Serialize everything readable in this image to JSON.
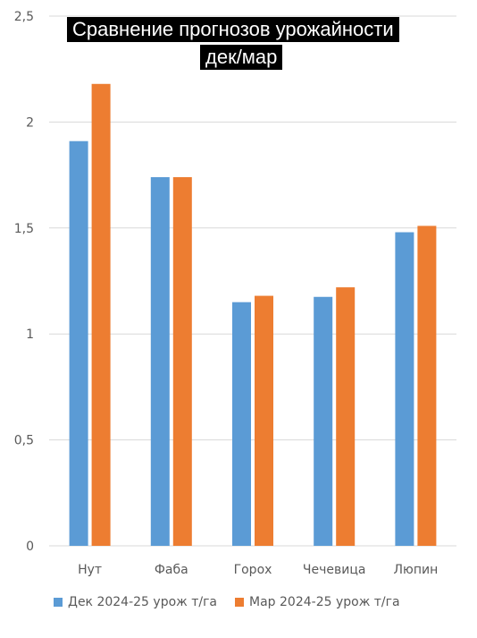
{
  "chart_data": {
    "type": "bar",
    "title": "Сравнение прогнозов урожайности",
    "subtitle": "дек/мар",
    "categories": [
      "Нут",
      "Фаба",
      "Горох",
      "Чечевица",
      "Люпин"
    ],
    "series": [
      {
        "name": "Дек 2024-25 урож т/га",
        "color": "#5B9BD5",
        "values": [
          1.91,
          1.74,
          1.15,
          1.175,
          1.48
        ]
      },
      {
        "name": "Мар 2024-25 урож т/га",
        "color": "#ED7D31",
        "values": [
          2.18,
          1.74,
          1.18,
          1.22,
          1.51
        ]
      }
    ],
    "ylim": [
      0,
      2.5
    ],
    "yticks": [
      0,
      0.5,
      1,
      1.5,
      2,
      2.5
    ],
    "ytick_labels": [
      "0",
      "0,5",
      "1",
      "1,5",
      "2",
      "2,5"
    ],
    "grid": true,
    "legend_position": "bottom"
  }
}
